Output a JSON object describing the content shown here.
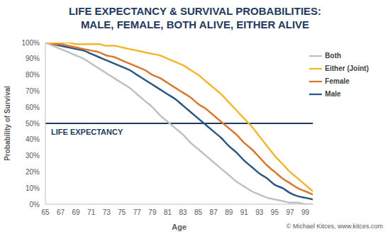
{
  "chart_data": {
    "type": "line",
    "title": "LIFE EXPECTANCY & SURVIVAL PROBABILITIES:\nMALE, FEMALE, BOTH ALIVE, EITHER ALIVE",
    "x_label": "Age",
    "y_label": "Probability of Survival",
    "source": "© Michael Kitces, www.kitces.com",
    "x": [
      65,
      66,
      67,
      68,
      69,
      70,
      71,
      72,
      73,
      74,
      75,
      76,
      77,
      78,
      79,
      80,
      81,
      82,
      83,
      84,
      85,
      86,
      87,
      88,
      89,
      90,
      91,
      92,
      93,
      94,
      95,
      96,
      97,
      98,
      99,
      100
    ],
    "xlim": [
      65,
      100
    ],
    "xticks": [
      65,
      67,
      69,
      71,
      73,
      75,
      77,
      79,
      81,
      83,
      85,
      87,
      89,
      91,
      93,
      95,
      97,
      99
    ],
    "ylim": [
      0,
      100
    ],
    "yticks": [
      {
        "value": 0,
        "label": "0%"
      },
      {
        "value": 10,
        "label": "10%"
      },
      {
        "value": 20,
        "label": "20%"
      },
      {
        "value": 30,
        "label": "30%"
      },
      {
        "value": 40,
        "label": "40%"
      },
      {
        "value": 50,
        "label": "50%"
      },
      {
        "value": 60,
        "label": "60%"
      },
      {
        "value": 70,
        "label": "70%"
      },
      {
        "value": 80,
        "label": "80%"
      },
      {
        "value": 90,
        "label": "90%"
      },
      {
        "value": 100,
        "label": "100%"
      }
    ],
    "grid": false,
    "legend": "top-right",
    "annotations": [
      {
        "text": "LIFE EXPECTANCY",
        "y": 50
      }
    ],
    "series": [
      {
        "name": "Male",
        "color": "#2b5783",
        "values": [
          100,
          99,
          98,
          97,
          96,
          95,
          93,
          91,
          89,
          87,
          85,
          83,
          80,
          77,
          74,
          71,
          68,
          65,
          61,
          57,
          53,
          49,
          45,
          41,
          36,
          32,
          27,
          23,
          19,
          16,
          12,
          10,
          7,
          5,
          4,
          3
        ]
      },
      {
        "name": "Female",
        "color": "#d9782d",
        "values": [
          100,
          99,
          99,
          98,
          97,
          96,
          95,
          94,
          92,
          91,
          89,
          87,
          85,
          83,
          80,
          78,
          75,
          72,
          69,
          66,
          62,
          59,
          55,
          51,
          47,
          43,
          38,
          34,
          29,
          24,
          20,
          16,
          13,
          10,
          8,
          6
        ]
      },
      {
        "name": "Both",
        "color": "#c0c0c0",
        "values": [
          100,
          98,
          96,
          94,
          92,
          90,
          87,
          84,
          81,
          78,
          75,
          72,
          68,
          64,
          60,
          55,
          51,
          47,
          43,
          38,
          34,
          30,
          26,
          22,
          18,
          14,
          11,
          8,
          6,
          4,
          3,
          2,
          1,
          1,
          0,
          0
        ]
      },
      {
        "name": "Either (Joint)",
        "color": "#f3b62f",
        "values": [
          100,
          100,
          100,
          100,
          99,
          99,
          99,
          99,
          98,
          98,
          97,
          96,
          95,
          94,
          93,
          92,
          90,
          88,
          86,
          83,
          80,
          76,
          72,
          68,
          63,
          58,
          53,
          48,
          42,
          36,
          30,
          25,
          20,
          16,
          12,
          8
        ]
      }
    ]
  }
}
